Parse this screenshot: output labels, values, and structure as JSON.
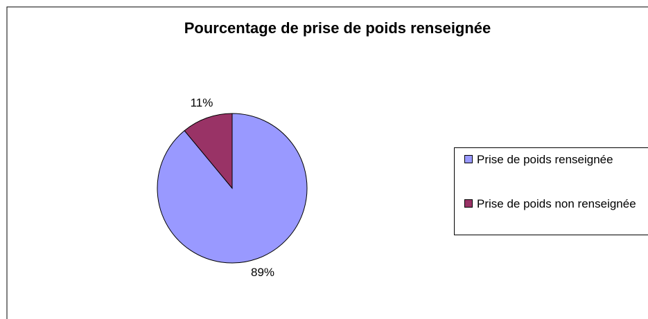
{
  "chart_data": {
    "type": "pie",
    "title": "Pourcentage de prise de poids renseignée",
    "categories": [
      "Prise de poids renseignée",
      "Prise de poids non renseignée"
    ],
    "values": [
      89,
      11
    ],
    "value_labels": [
      "89%",
      "11%"
    ],
    "colors": [
      "#9999ff",
      "#993366"
    ],
    "legend": "right"
  }
}
